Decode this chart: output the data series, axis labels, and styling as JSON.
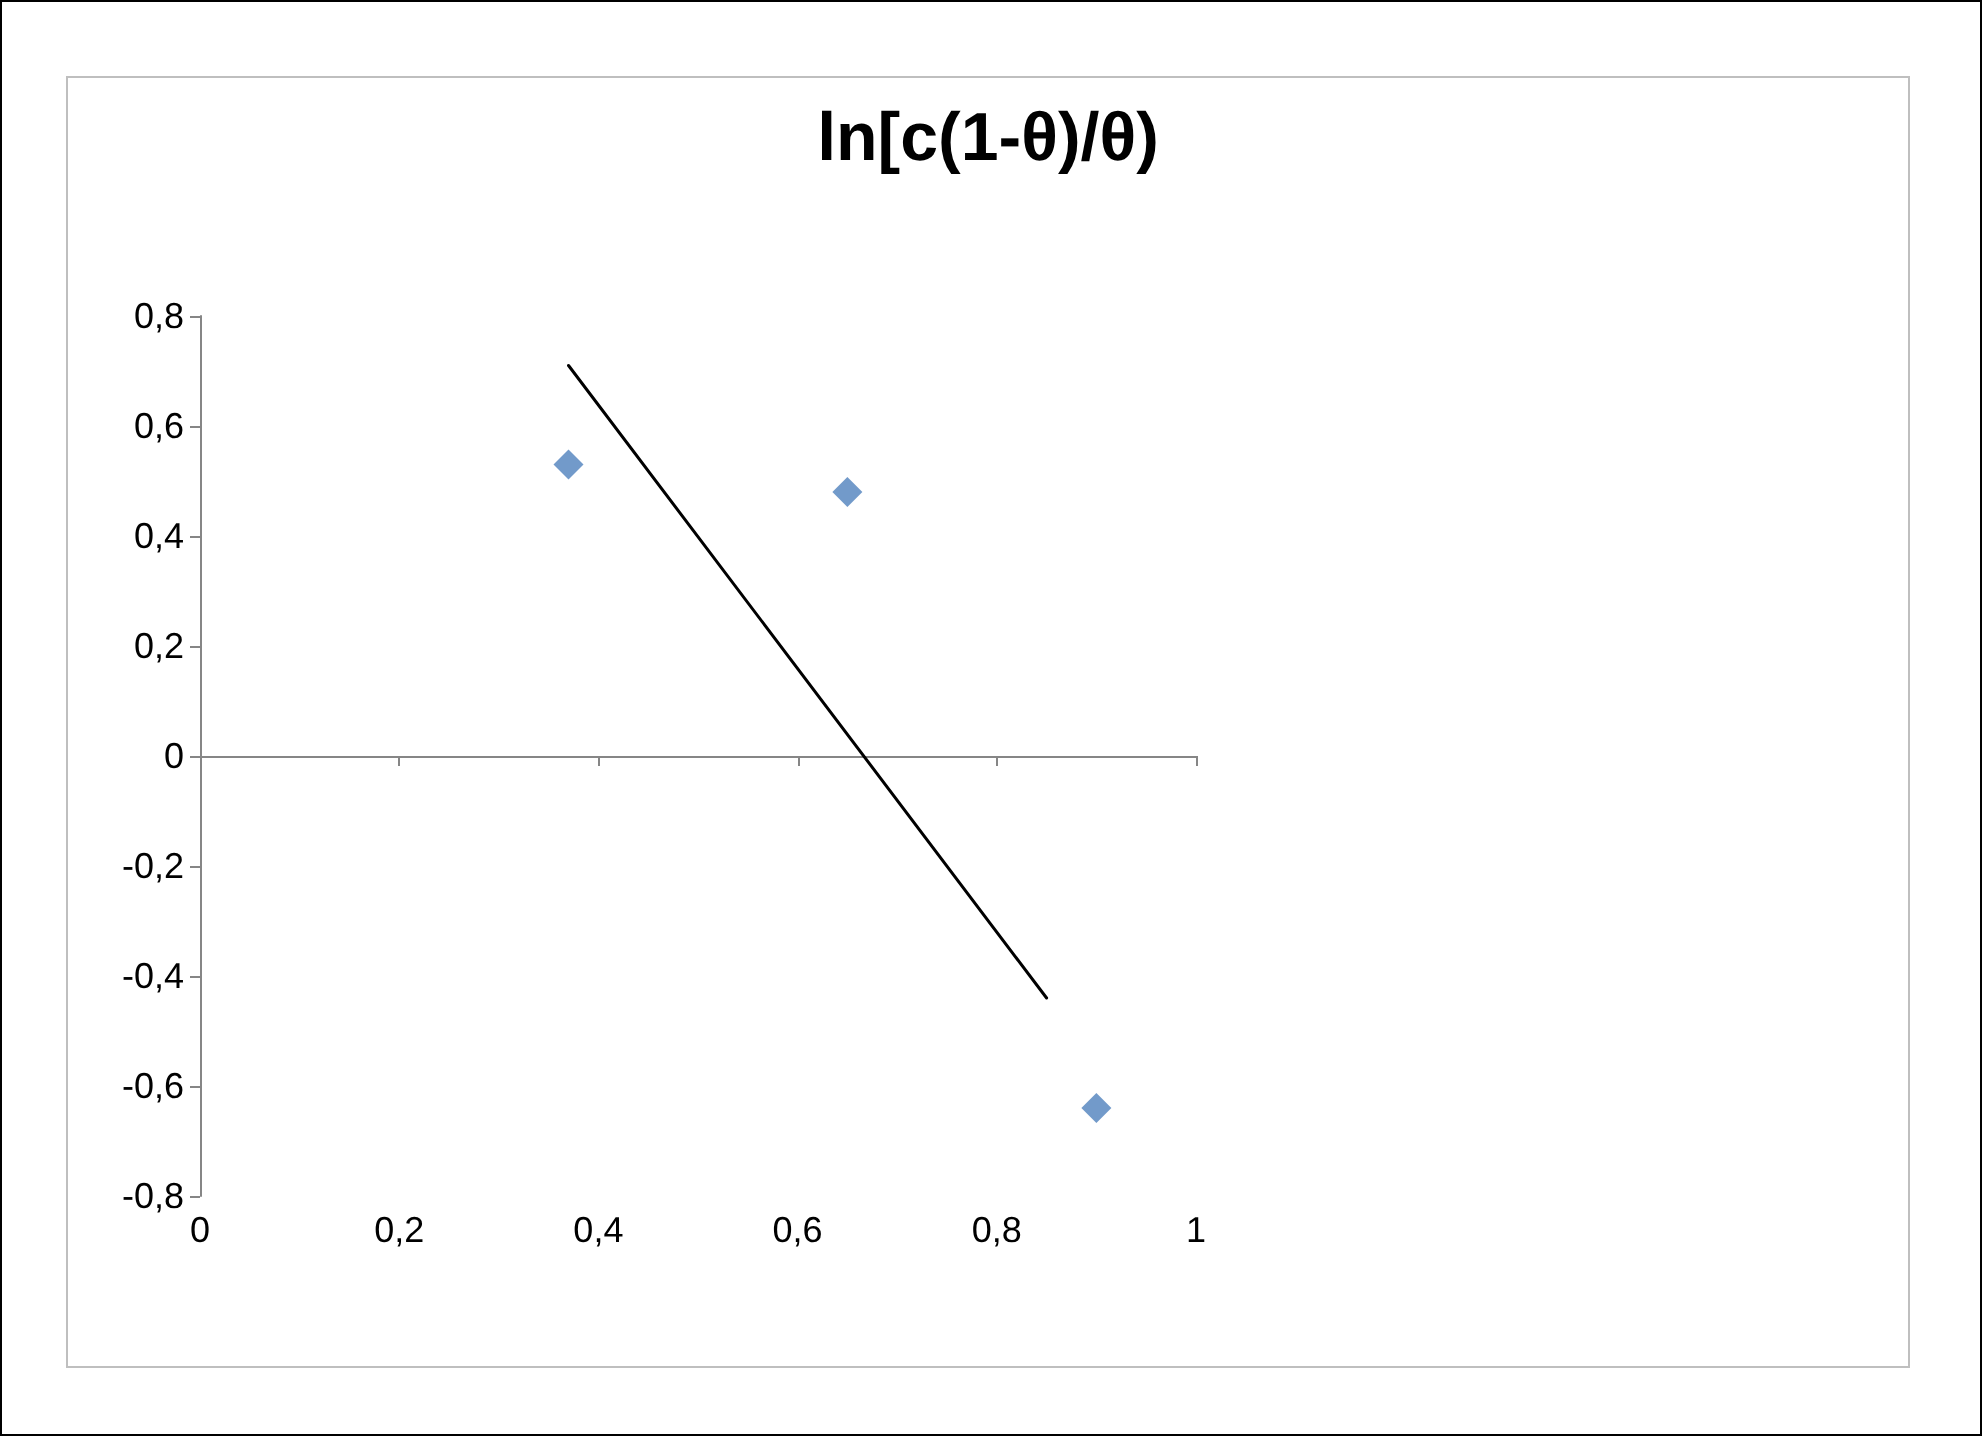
{
  "chart_data": {
    "type": "scatter",
    "title": "ln[c(1-θ)/θ)",
    "xlim": [
      0,
      1
    ],
    "xticks": [
      0,
      {
        "value": 0.2,
        "label": "0,2"
      },
      {
        "value": 0.4,
        "label": "0,4"
      },
      {
        "value": 0.6,
        "label": "0,6"
      },
      {
        "value": 0.8,
        "label": "0,8"
      },
      1
    ],
    "ylim": [
      -0.8,
      0.8
    ],
    "yticks": [
      {
        "value": -0.8,
        "label": "-0,8"
      },
      {
        "value": -0.6,
        "label": "-0,6"
      },
      {
        "value": -0.4,
        "label": "-0,4"
      },
      {
        "value": -0.2,
        "label": "-0,2"
      },
      0,
      {
        "value": 0.2,
        "label": "0,2"
      },
      {
        "value": 0.4,
        "label": "0,4"
      },
      {
        "value": 0.6,
        "label": "0,6"
      },
      {
        "value": 0.8,
        "label": "0,8"
      }
    ],
    "series": [
      {
        "color": "#4f81bd",
        "marker": "diamond",
        "x": [
          0.37,
          0.65,
          0.9
        ],
        "values": [
          0.53,
          0.48,
          -0.64
        ]
      },
      {
        "type": "line",
        "color": "#000000",
        "marker": "none",
        "line_style": "solid",
        "x": [
          0.37,
          0.85
        ],
        "values": [
          0.71,
          -0.44
        ]
      }
    ]
  }
}
